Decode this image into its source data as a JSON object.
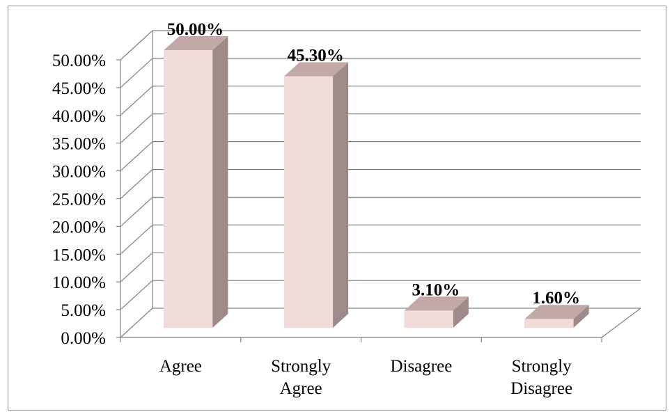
{
  "chart_data": {
    "type": "bar",
    "style": "3d-column",
    "categories": [
      "Agree",
      "Strongly Agree",
      "Disagree",
      "Strongly Disagree"
    ],
    "values": [
      50.0,
      45.3,
      3.1,
      1.6
    ],
    "data_labels": [
      "50.00%",
      "45.30%",
      "3.10%",
      "1.60%"
    ],
    "y_ticks": [
      "0.00%",
      "5.00%",
      "10.00%",
      "15.00%",
      "20.00%",
      "25.00%",
      "30.00%",
      "35.00%",
      "40.00%",
      "45.00%",
      "50.00%"
    ],
    "ylim": [
      0,
      50
    ],
    "grid": true,
    "legend": "none",
    "colors": {
      "bar_front": "#f2dcdb",
      "bar_side": "#9e8a89",
      "bar_top": "#c1a9a8",
      "gridline": "#808080",
      "frame": "#8c8c8c"
    }
  }
}
